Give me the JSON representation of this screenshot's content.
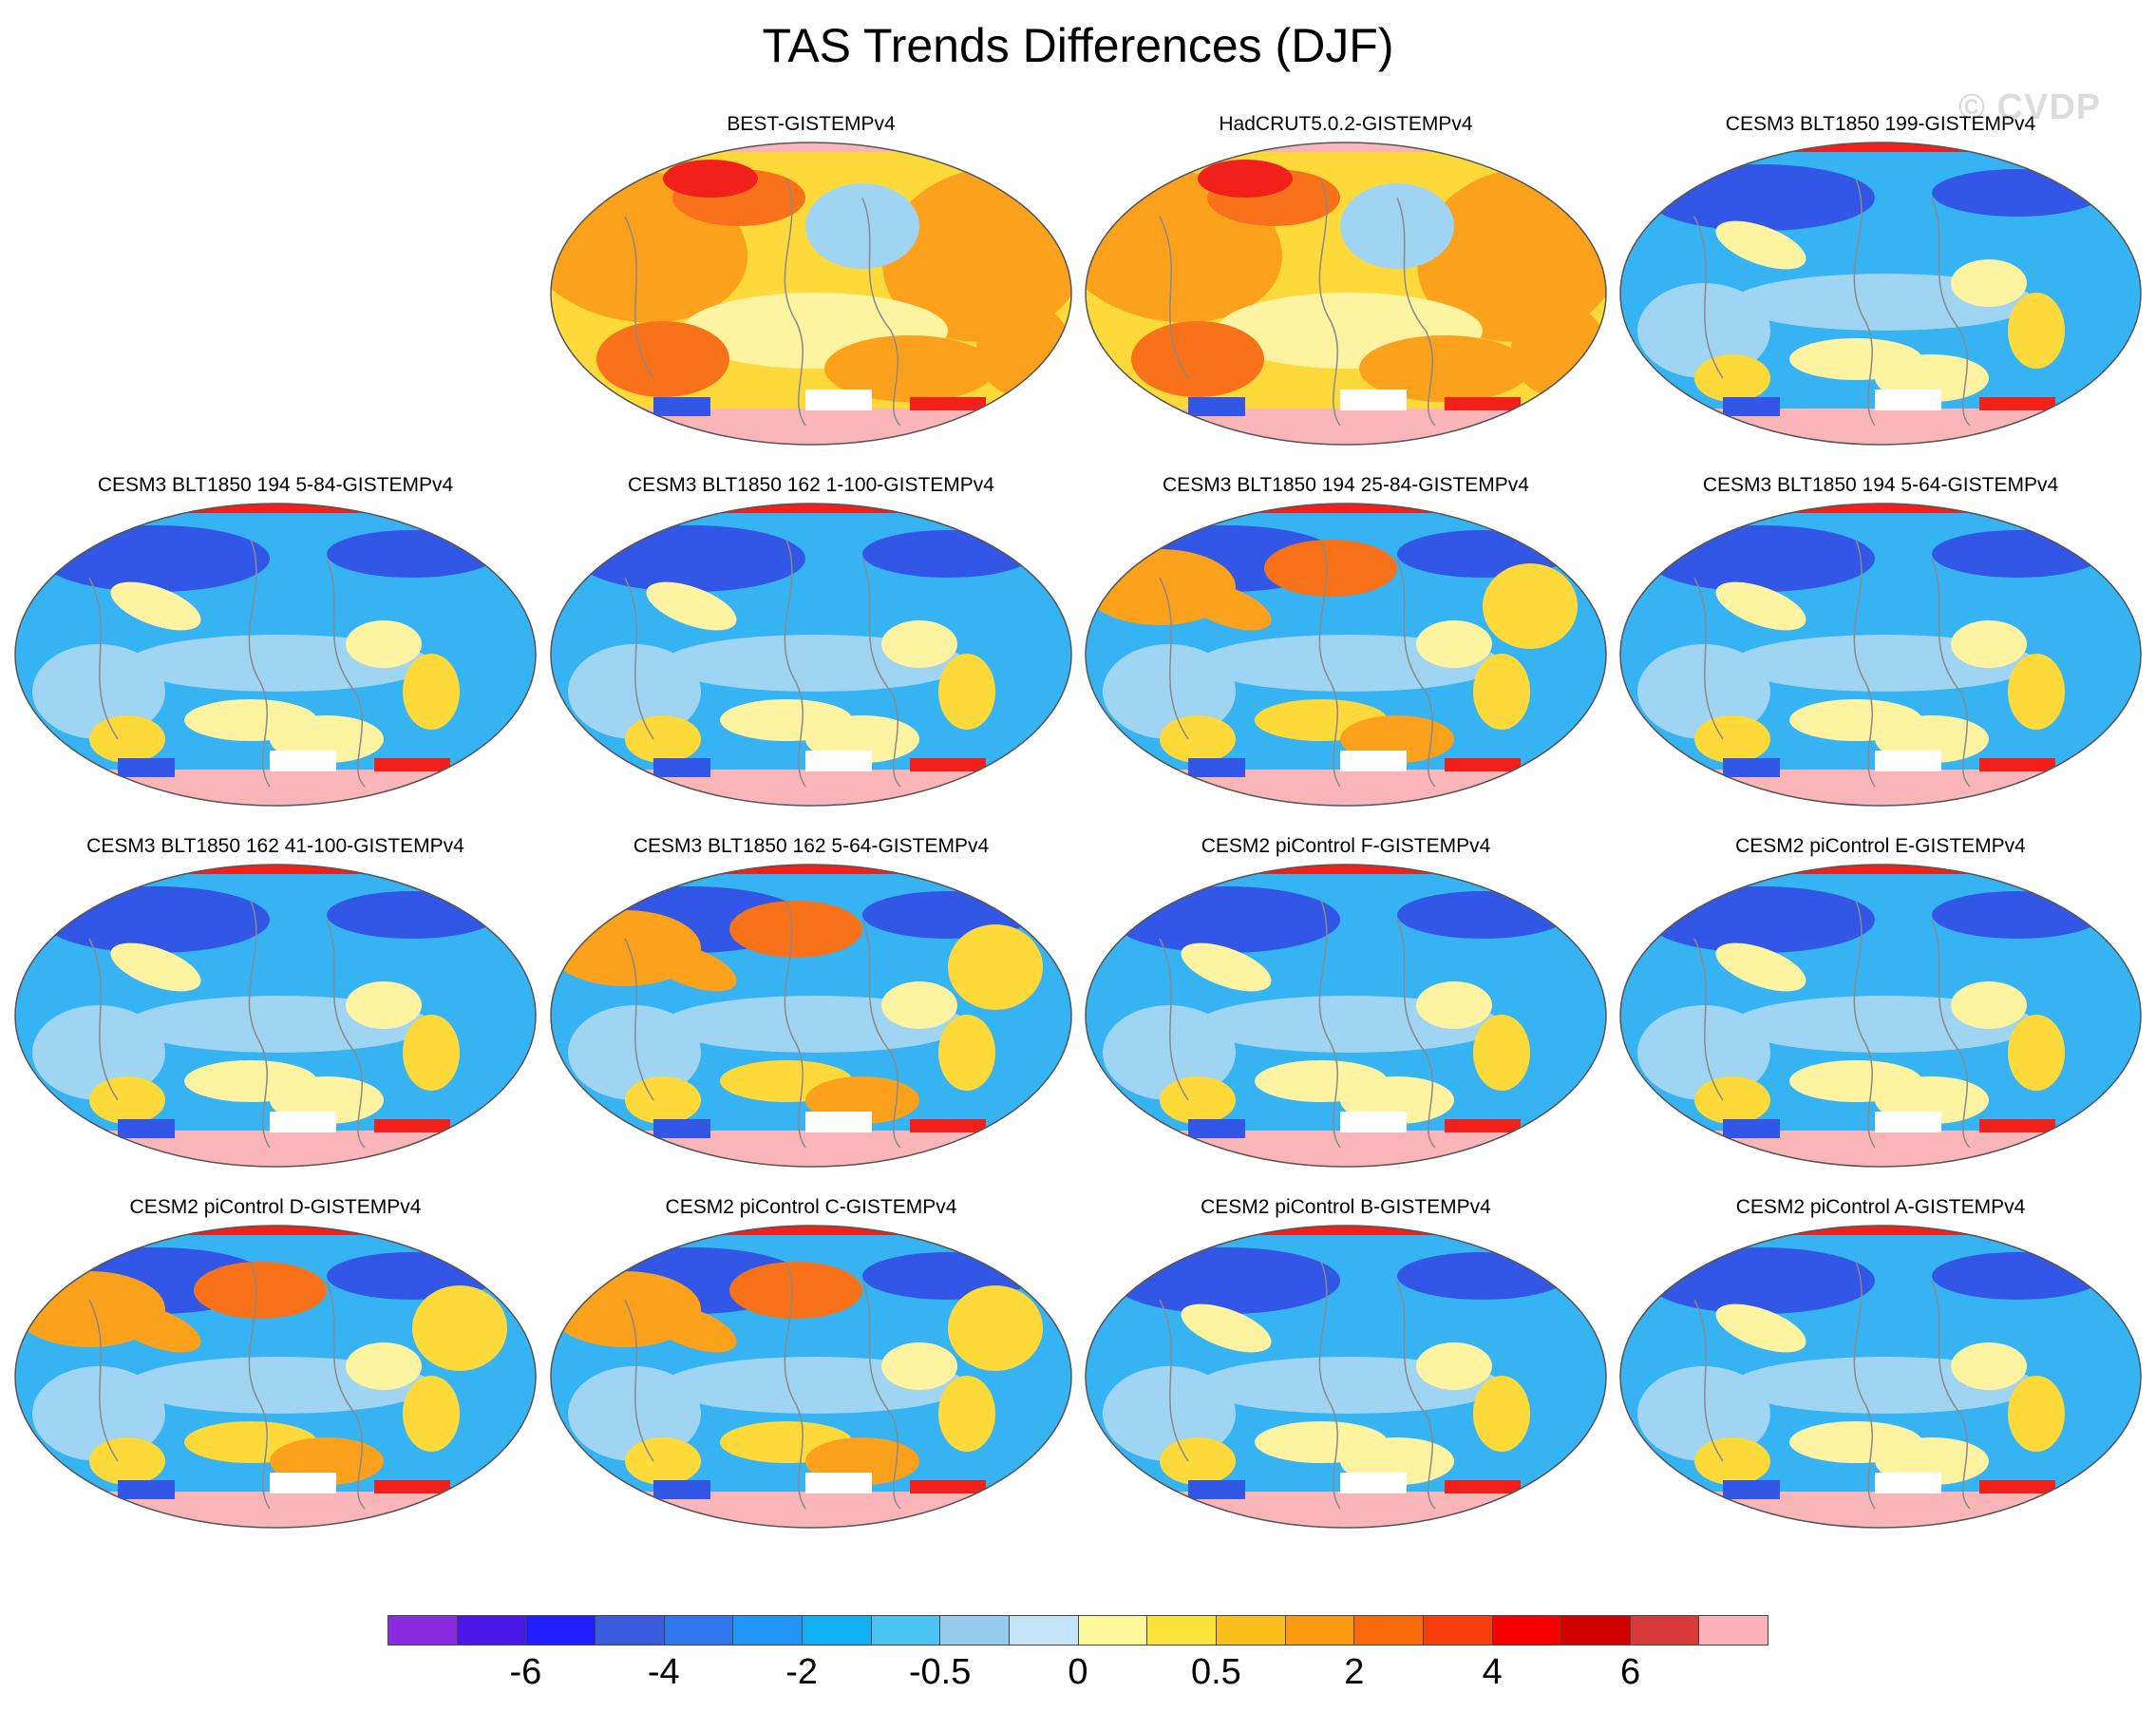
{
  "figure": {
    "title": "TAS Trends Differences (DJF)",
    "watermark": "© CVDP"
  },
  "panels": [
    {
      "row": 0,
      "col": 1,
      "label": "BEST-GISTEMPv4",
      "tone": "warm"
    },
    {
      "row": 0,
      "col": 2,
      "label": "HadCRUT5.0.2-GISTEMPv4",
      "tone": "warm"
    },
    {
      "row": 0,
      "col": 3,
      "label": "CESM3 BLT1850 199-GISTEMPv4",
      "tone": "cool"
    },
    {
      "row": 1,
      "col": 0,
      "label": "CESM3 BLT1850 194 5-84-GISTEMPv4",
      "tone": "cool"
    },
    {
      "row": 1,
      "col": 1,
      "label": "CESM3 BLT1850 162 1-100-GISTEMPv4",
      "tone": "cool"
    },
    {
      "row": 1,
      "col": 2,
      "label": "CESM3 BLT1850 194 25-84-GISTEMPv4",
      "tone": "mixed"
    },
    {
      "row": 1,
      "col": 3,
      "label": "CESM3 BLT1850 194 5-64-GISTEMPv4",
      "tone": "cool"
    },
    {
      "row": 2,
      "col": 0,
      "label": "CESM3 BLT1850 162 41-100-GISTEMPv4",
      "tone": "cool"
    },
    {
      "row": 2,
      "col": 1,
      "label": "CESM3 BLT1850 162 5-64-GISTEMPv4",
      "tone": "mixed"
    },
    {
      "row": 2,
      "col": 2,
      "label": "CESM2 piControl F-GISTEMPv4",
      "tone": "cool"
    },
    {
      "row": 2,
      "col": 3,
      "label": "CESM2 piControl E-GISTEMPv4",
      "tone": "cool"
    },
    {
      "row": 3,
      "col": 0,
      "label": "CESM2 piControl D-GISTEMPv4",
      "tone": "mixed"
    },
    {
      "row": 3,
      "col": 1,
      "label": "CESM2 piControl C-GISTEMPv4",
      "tone": "mixed"
    },
    {
      "row": 3,
      "col": 2,
      "label": "CESM2 piControl B-GISTEMPv4",
      "tone": "cool"
    },
    {
      "row": 3,
      "col": 3,
      "label": "CESM2 piControl A-GISTEMPv4",
      "tone": "cool"
    }
  ],
  "colorbar": {
    "colors": [
      "#8a2be2",
      "#4b17e8",
      "#1f1fff",
      "#3a5de0",
      "#2f77ee",
      "#2196f8",
      "#10b0f5",
      "#4ac2f2",
      "#95cbef",
      "#c3e3f7",
      "#fdf99a",
      "#fde23a",
      "#fcbe1a",
      "#fb9c12",
      "#f96b0a",
      "#f83c0c",
      "#f80000",
      "#d30000",
      "#d83a3a",
      "#fbb2b6"
    ],
    "tick_labels": [
      "-6",
      "-4",
      "-2",
      "-0.5",
      "0",
      "0.5",
      "2",
      "4",
      "6"
    ],
    "tick_boundaries": [
      2,
      4,
      6,
      8,
      10,
      12,
      14,
      16,
      18
    ]
  },
  "palette": {
    "ocean_cool": "#35b3f3",
    "light_blue": "#9fd4f2",
    "pale_yellow": "#fdf3a0",
    "yellow": "#fdd93a",
    "orange": "#fba11c",
    "red_orange": "#f9721a",
    "deep_blue": "#3257e6",
    "red": "#f2201a",
    "antarctic_pink": "#fab5b9",
    "coast": "#8a8a8a"
  }
}
